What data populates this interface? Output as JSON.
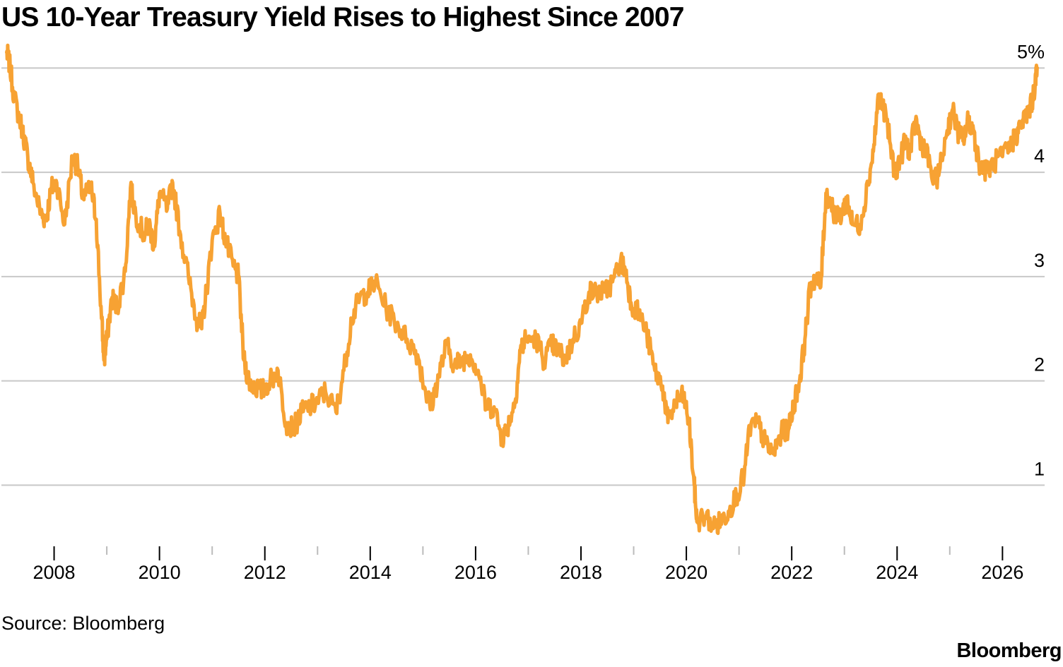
{
  "footer": {
    "source": "Source: Bloomberg",
    "brand": "Bloomberg"
  },
  "chart_data": {
    "type": "line",
    "title": "US 10-Year Treasury Yield Rises to Highest Since 2007",
    "xlabel": "",
    "ylabel": "",
    "xlim": [
      2007.0,
      2026.8
    ],
    "ylim": [
      0.4,
      5.3
    ],
    "y_ticks": [
      1,
      2,
      3,
      4,
      5
    ],
    "y_tick_labels": [
      "1",
      "2",
      "3",
      "4",
      "5%"
    ],
    "x_ticks": [
      2008,
      2010,
      2012,
      2014,
      2016,
      2018,
      2020,
      2022,
      2024,
      2026
    ],
    "x_tick_labels": [
      "2008",
      "2010",
      "2012",
      "2014",
      "2016",
      "2018",
      "2020",
      "2022",
      "2024",
      "2026"
    ],
    "grid": "horizontal",
    "line_color": "#F7A233",
    "gridline_color": "#C8C8C8",
    "series": [
      {
        "x": [
          2007.1,
          2007.15,
          2007.25,
          2007.4,
          2007.5,
          2007.6,
          2007.75,
          2007.85,
          2007.95,
          2008.05,
          2008.2,
          2008.35,
          2008.45,
          2008.55,
          2008.7,
          2008.8,
          2008.9,
          2008.95,
          2009.0,
          2009.1,
          2009.2,
          2009.35,
          2009.45,
          2009.55,
          2009.7,
          2009.8,
          2009.9,
          2010.0,
          2010.15,
          2010.25,
          2010.4,
          2010.55,
          2010.7,
          2010.8,
          2010.9,
          2011.0,
          2011.15,
          2011.25,
          2011.4,
          2011.5,
          2011.6,
          2011.7,
          2011.8,
          2011.95,
          2012.1,
          2012.25,
          2012.4,
          2012.55,
          2012.7,
          2012.85,
          2013.0,
          2013.15,
          2013.35,
          2013.5,
          2013.65,
          2013.8,
          2013.95,
          2014.1,
          2014.3,
          2014.5,
          2014.7,
          2014.9,
          2015.05,
          2015.15,
          2015.3,
          2015.45,
          2015.6,
          2015.75,
          2015.9,
          2016.05,
          2016.2,
          2016.35,
          2016.5,
          2016.6,
          2016.75,
          2016.85,
          2016.95,
          2017.15,
          2017.3,
          2017.45,
          2017.55,
          2017.7,
          2017.85,
          2018.0,
          2018.15,
          2018.3,
          2018.45,
          2018.6,
          2018.75,
          2018.85,
          2018.95,
          2019.1,
          2019.25,
          2019.4,
          2019.55,
          2019.65,
          2019.8,
          2019.95,
          2020.05,
          2020.15,
          2020.2,
          2020.35,
          2020.55,
          2020.65,
          2020.8,
          2020.95,
          2021.1,
          2021.2,
          2021.35,
          2021.5,
          2021.65,
          2021.8,
          2021.95,
          2022.05,
          2022.15,
          2022.25,
          2022.35,
          2022.45,
          2022.55,
          2022.65,
          2022.75,
          2022.85,
          2022.95,
          2023.05,
          2023.15,
          2023.3,
          2023.45,
          2023.55,
          2023.65,
          2023.8,
          2023.95,
          2024.05,
          2024.15,
          2024.25,
          2024.35,
          2024.45,
          2024.55,
          2024.7,
          2024.8,
          2024.95,
          2025.05,
          2025.15,
          2025.25,
          2025.35,
          2025.45,
          2025.55,
          2025.7,
          2025.85,
          2026.0,
          2026.15,
          2026.25,
          2026.35,
          2026.45,
          2026.55,
          2026.62,
          2026.66
        ],
        "y": [
          5.15,
          5.05,
          4.7,
          4.4,
          4.15,
          3.9,
          3.6,
          3.55,
          3.85,
          3.9,
          3.5,
          4.15,
          4.05,
          3.75,
          3.85,
          3.55,
          2.6,
          2.2,
          2.4,
          2.8,
          2.7,
          3.05,
          3.85,
          3.6,
          3.4,
          3.5,
          3.3,
          3.8,
          3.65,
          3.9,
          3.4,
          3.0,
          2.6,
          2.5,
          2.9,
          3.35,
          3.6,
          3.35,
          3.1,
          3.0,
          2.2,
          2.0,
          1.95,
          1.9,
          2.0,
          2.1,
          1.6,
          1.55,
          1.7,
          1.75,
          1.8,
          1.9,
          1.7,
          2.1,
          2.6,
          2.8,
          2.85,
          2.95,
          2.7,
          2.55,
          2.4,
          2.25,
          1.9,
          1.75,
          2.05,
          2.35,
          2.15,
          2.2,
          2.25,
          2.1,
          1.75,
          1.75,
          1.45,
          1.55,
          1.8,
          2.3,
          2.4,
          2.4,
          2.2,
          2.35,
          2.3,
          2.2,
          2.4,
          2.55,
          2.85,
          2.85,
          2.85,
          2.95,
          3.15,
          3.05,
          2.75,
          2.65,
          2.45,
          2.1,
          1.95,
          1.6,
          1.8,
          1.85,
          1.6,
          1.0,
          0.65,
          0.7,
          0.6,
          0.65,
          0.75,
          0.9,
          1.1,
          1.55,
          1.6,
          1.4,
          1.3,
          1.5,
          1.55,
          1.8,
          2.0,
          2.4,
          2.9,
          3.0,
          2.9,
          3.8,
          3.7,
          3.55,
          3.6,
          3.75,
          3.5,
          3.5,
          3.9,
          4.2,
          4.75,
          4.5,
          4.0,
          4.1,
          4.3,
          4.2,
          4.5,
          4.3,
          4.2,
          3.9,
          4.0,
          4.4,
          4.6,
          4.4,
          4.3,
          4.5,
          4.4,
          4.1,
          4.0,
          4.1,
          4.15,
          4.25,
          4.35,
          4.45,
          4.55,
          4.65,
          4.85,
          5.0
        ]
      }
    ]
  }
}
